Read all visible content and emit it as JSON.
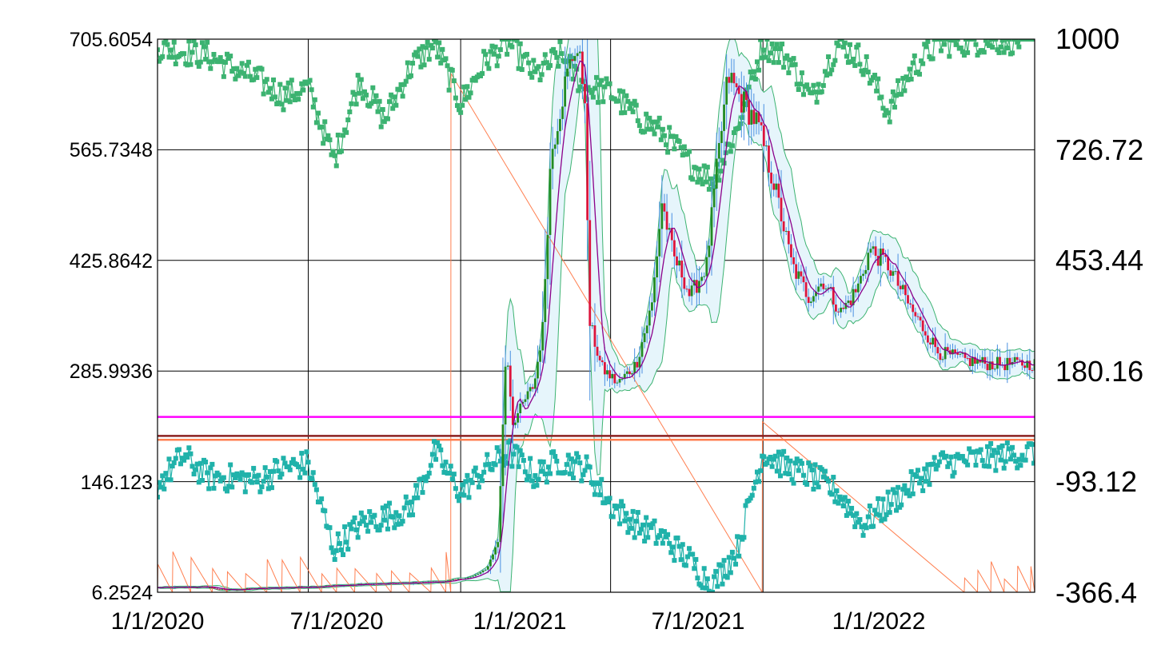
{
  "chart_data": {
    "type": "candlestick",
    "title": "",
    "xlabel": "",
    "ylabel": "",
    "x_axis": {
      "type": "date",
      "range": [
        "2020-01-01",
        "2022-11-25"
      ],
      "tick_labels": [
        "1/1/2020",
        "7/1/2020",
        "1/1/2021",
        "7/1/2021",
        "1/1/2022"
      ]
    },
    "y_left": {
      "range": [
        6.2524,
        705.6054
      ],
      "tick_labels": [
        "705.6054",
        "565.7348",
        "425.8642",
        "285.9936",
        "146.123",
        "6.2524"
      ]
    },
    "y_right": {
      "range": [
        -366.4,
        1000
      ],
      "tick_labels": [
        "1000",
        "726.72",
        "453.44",
        "180.16",
        "-93.12",
        "-366.4"
      ]
    },
    "grid": true,
    "legend": "none",
    "price_key_points": [
      [
        "2020-01-01",
        12
      ],
      [
        "2020-03-01",
        13
      ],
      [
        "2020-03-20",
        9
      ],
      [
        "2020-05-01",
        11
      ],
      [
        "2020-07-01",
        13
      ],
      [
        "2020-09-01",
        16
      ],
      [
        "2020-11-01",
        18
      ],
      [
        "2020-12-15",
        20
      ],
      [
        "2021-01-15",
        26
      ],
      [
        "2021-02-01",
        35
      ],
      [
        "2021-02-15",
        70
      ],
      [
        "2021-02-20",
        190
      ],
      [
        "2021-02-25",
        320
      ],
      [
        "2021-03-05",
        220
      ],
      [
        "2021-03-20",
        250
      ],
      [
        "2021-03-31",
        270
      ],
      [
        "2021-04-10",
        340
      ],
      [
        "2021-04-20",
        560
      ],
      [
        "2021-05-05",
        640
      ],
      [
        "2021-05-20",
        700
      ],
      [
        "2021-05-31",
        640
      ],
      [
        "2021-06-05",
        350
      ],
      [
        "2021-06-20",
        290
      ],
      [
        "2021-07-10",
        270
      ],
      [
        "2021-08-01",
        295
      ],
      [
        "2021-08-20",
        370
      ],
      [
        "2021-09-01",
        500
      ],
      [
        "2021-09-15",
        430
      ],
      [
        "2021-09-25",
        410
      ],
      [
        "2021-10-05",
        380
      ],
      [
        "2021-10-25",
        420
      ],
      [
        "2021-11-05",
        530
      ],
      [
        "2021-11-20",
        660
      ],
      [
        "2021-12-05",
        630
      ],
      [
        "2021-12-25",
        600
      ],
      [
        "2022-01-15",
        520
      ],
      [
        "2022-02-05",
        420
      ],
      [
        "2022-02-25",
        380
      ],
      [
        "2022-03-15",
        400
      ],
      [
        "2022-04-05",
        360
      ],
      [
        "2022-04-25",
        390
      ],
      [
        "2022-05-10",
        440
      ],
      [
        "2022-06-01",
        420
      ],
      [
        "2022-07-01",
        360
      ],
      [
        "2022-08-01",
        310
      ],
      [
        "2022-09-01",
        300
      ],
      [
        "2022-10-01",
        295
      ],
      [
        "2022-11-25",
        295
      ]
    ],
    "horizontal_lines": [
      {
        "color": "#ff00ff",
        "y": 228
      },
      {
        "color": "#8b2020",
        "y": 204
      },
      {
        "color": "#ff7f50",
        "y": 199
      }
    ],
    "indicator_green_key_points": [
      [
        "2020-01-01",
        980
      ],
      [
        "2020-03-01",
        960
      ],
      [
        "2020-05-01",
        900
      ],
      [
        "2020-06-01",
        860
      ],
      [
        "2020-07-01",
        880
      ],
      [
        "2020-08-01",
        700
      ],
      [
        "2020-09-01",
        900
      ],
      [
        "2020-10-01",
        800
      ],
      [
        "2020-11-01",
        930
      ],
      [
        "2020-12-01",
        990
      ],
      [
        "2021-01-01",
        840
      ],
      [
        "2021-02-01",
        950
      ],
      [
        "2021-03-01",
        990
      ],
      [
        "2021-04-01",
        910
      ],
      [
        "2021-05-01",
        960
      ],
      [
        "2021-06-01",
        880
      ],
      [
        "2021-07-01",
        870
      ],
      [
        "2021-08-01",
        810
      ],
      [
        "2021-09-01",
        770
      ],
      [
        "2021-10-01",
        700
      ],
      [
        "2021-11-01",
        650
      ],
      [
        "2021-12-01",
        780
      ],
      [
        "2022-01-01",
        990
      ],
      [
        "2022-02-01",
        950
      ],
      [
        "2022-03-01",
        850
      ],
      [
        "2022-04-01",
        990
      ],
      [
        "2022-05-01",
        950
      ],
      [
        "2022-06-01",
        820
      ],
      [
        "2022-07-01",
        930
      ],
      [
        "2022-08-01",
        990
      ],
      [
        "2022-11-25",
        1000
      ]
    ],
    "indicator_teal_key_points": [
      [
        "2020-01-01",
        -100
      ],
      [
        "2020-02-01",
        -30
      ],
      [
        "2020-03-01",
        -80
      ],
      [
        "2020-05-01",
        -90
      ],
      [
        "2020-06-01",
        -60
      ],
      [
        "2020-07-01",
        -50
      ],
      [
        "2020-08-01",
        -260
      ],
      [
        "2020-09-01",
        -200
      ],
      [
        "2020-10-01",
        -180
      ],
      [
        "2020-11-01",
        -160
      ],
      [
        "2020-12-01",
        -20
      ],
      [
        "2021-01-01",
        -120
      ],
      [
        "2021-02-01",
        -60
      ],
      [
        "2021-03-01",
        -20
      ],
      [
        "2021-04-01",
        -80
      ],
      [
        "2021-05-01",
        -40
      ],
      [
        "2021-06-01",
        -60
      ],
      [
        "2021-07-01",
        -150
      ],
      [
        "2021-08-01",
        -200
      ],
      [
        "2021-09-01",
        -230
      ],
      [
        "2021-10-01",
        -280
      ],
      [
        "2021-11-01",
        -350
      ],
      [
        "2021-12-01",
        -260
      ],
      [
        "2022-01-01",
        -20
      ],
      [
        "2022-02-01",
        -60
      ],
      [
        "2022-03-01",
        -80
      ],
      [
        "2022-04-01",
        -120
      ],
      [
        "2022-05-01",
        -200
      ],
      [
        "2022-06-01",
        -150
      ],
      [
        "2022-07-01",
        -100
      ],
      [
        "2022-08-01",
        -50
      ],
      [
        "2022-11-25",
        -20
      ]
    ],
    "orange_sawtooth_right_axis": [
      {
        "start": "2020-12-20",
        "top": 915,
        "end": "2021-12-31",
        "bottom": -366.4
      },
      {
        "start": "2021-12-31",
        "top": 55,
        "end": "2022-09-01",
        "bottom": -366.4
      }
    ]
  },
  "colors": {
    "background": "#ffffff",
    "grid": "#000000",
    "candle_up": "#228b22",
    "candle_down": "#dc143c",
    "wick": "#4a90e2",
    "band_fill": "#e6f5fb",
    "band_line": "#3cb371",
    "moving_average": "#8b008b",
    "indicator_green": "#3cb371",
    "indicator_teal": "#20b2aa",
    "oscillator": "#ff7f50"
  }
}
